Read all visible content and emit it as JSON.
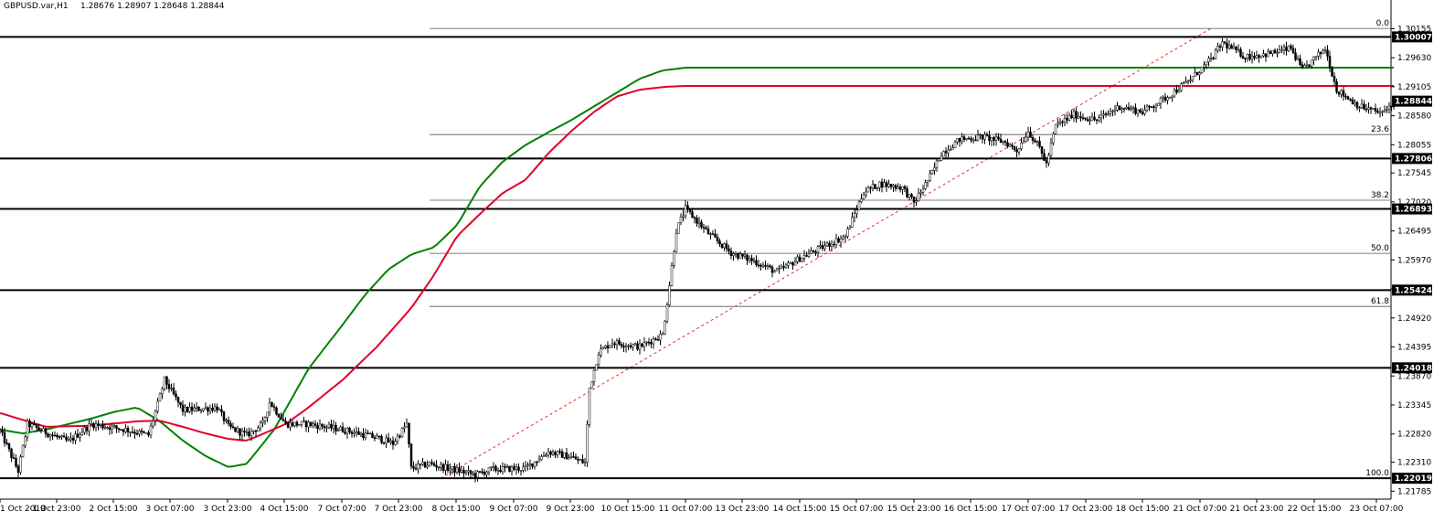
{
  "header": {
    "symbol_tf": "GBPUSD.var,H1",
    "ohlc": "1.28676 1.28907 1.28648 1.28844"
  },
  "chart_data": {
    "type": "candlestick",
    "symbol": "GBPUSD.var",
    "timeframe": "H1",
    "ohlc": {
      "open": 1.28676,
      "high": 1.28907,
      "low": 1.28648,
      "close": 1.28844
    },
    "ylim": [
      1.2174,
      1.3041
    ],
    "y_ticks": [
      1.30155,
      1.2963,
      1.29105,
      1.2858,
      1.28055,
      1.27545,
      1.2702,
      1.26495,
      1.2597,
      1.25445,
      1.2492,
      1.24395,
      1.2387,
      1.23345,
      1.2282,
      1.2231,
      1.21785
    ],
    "x_ticks": [
      "1 Oct 2019",
      "1 Oct 23:00",
      "2 Oct 15:00",
      "3 Oct 07:00",
      "3 Oct 23:00",
      "4 Oct 15:00",
      "7 Oct 07:00",
      "7 Oct 23:00",
      "8 Oct 15:00",
      "9 Oct 07:00",
      "9 Oct 23:00",
      "10 Oct 15:00",
      "11 Oct 07:00",
      "13 Oct 23:00",
      "14 Oct 15:00",
      "15 Oct 07:00",
      "15 Oct 23:00",
      "16 Oct 15:00",
      "17 Oct 07:00",
      "17 Oct 23:00",
      "18 Oct 15:00",
      "21 Oct 07:00",
      "21 Oct 23:00",
      "22 Oct 15:00",
      "23 Oct 07:00"
    ],
    "price_boxes": [
      "1.30007",
      "1.28844",
      "1.27806",
      "1.26893",
      "1.25424",
      "1.24018",
      "1.22019"
    ],
    "horizontal_levels": [
      1.30007,
      1.27806,
      1.26893,
      1.25424,
      1.24018,
      1.22019
    ],
    "current_price": 1.28844,
    "fibonacci": {
      "high": 1.3016,
      "low": 1.22019,
      "levels": [
        {
          "label": "0.0",
          "value": 1.3016
        },
        {
          "label": "23.6",
          "value": 1.28239
        },
        {
          "label": "38.2",
          "value": 1.27051
        },
        {
          "label": "50.0",
          "value": 1.2609
        },
        {
          "label": "61.8",
          "value": 1.25129
        },
        {
          "label": "100.0",
          "value": 1.22019
        }
      ]
    },
    "series": [
      {
        "color": "#008000",
        "anchors": [
          [
            0,
            1.229
          ],
          [
            10,
            1.2283
          ],
          [
            20,
            1.229
          ],
          [
            30,
            1.23
          ],
          [
            40,
            1.231
          ],
          [
            50,
            1.2322
          ],
          [
            60,
            1.233
          ],
          [
            70,
            1.2305
          ],
          [
            80,
            1.227
          ],
          [
            90,
            1.2242
          ],
          [
            100,
            1.2222
          ],
          [
            108,
            1.2228
          ],
          [
            120,
            1.229
          ],
          [
            135,
            1.24
          ],
          [
            150,
            1.248
          ],
          [
            160,
            1.2535
          ],
          [
            170,
            1.258
          ],
          [
            180,
            1.2607
          ],
          [
            190,
            1.262
          ],
          [
            200,
            1.266
          ],
          [
            210,
            1.273
          ],
          [
            220,
            1.2775
          ],
          [
            230,
            1.2805
          ],
          [
            240,
            1.2828
          ],
          [
            250,
            1.285
          ],
          [
            260,
            1.2875
          ],
          [
            270,
            1.29
          ],
          [
            280,
            1.2925
          ],
          [
            290,
            1.294
          ],
          [
            300,
            1.2945
          ]
        ]
      },
      {
        "color": "#e0002a",
        "anchors": [
          [
            0,
            1.232
          ],
          [
            20,
            1.2295
          ],
          [
            40,
            1.2297
          ],
          [
            60,
            1.2305
          ],
          [
            70,
            1.2306
          ],
          [
            80,
            1.2295
          ],
          [
            90,
            1.2283
          ],
          [
            100,
            1.2273
          ],
          [
            108,
            1.227
          ],
          [
            115,
            1.2282
          ],
          [
            125,
            1.23
          ],
          [
            135,
            1.233
          ],
          [
            150,
            1.238
          ],
          [
            165,
            1.244
          ],
          [
            180,
            1.251
          ],
          [
            190,
            1.257
          ],
          [
            200,
            1.264
          ],
          [
            210,
            1.268
          ],
          [
            220,
            1.2718
          ],
          [
            230,
            1.2742
          ],
          [
            240,
            1.279
          ],
          [
            250,
            1.283
          ],
          [
            260,
            1.2865
          ],
          [
            270,
            1.2893
          ],
          [
            280,
            1.2905
          ],
          [
            290,
            1.291
          ],
          [
            300,
            1.2912
          ]
        ]
      }
    ],
    "candle_waypoints": [
      [
        0,
        1.2288
      ],
      [
        8,
        1.2215
      ],
      [
        12,
        1.23
      ],
      [
        20,
        1.2285
      ],
      [
        30,
        1.2268
      ],
      [
        40,
        1.23
      ],
      [
        55,
        1.229
      ],
      [
        65,
        1.228
      ],
      [
        70,
        1.235
      ],
      [
        72,
        1.238
      ],
      [
        80,
        1.2325
      ],
      [
        95,
        1.233
      ],
      [
        100,
        1.2295
      ],
      [
        108,
        1.228
      ],
      [
        115,
        1.23
      ],
      [
        118,
        1.234
      ],
      [
        125,
        1.23
      ],
      [
        135,
        1.23
      ],
      [
        150,
        1.229
      ],
      [
        165,
        1.2275
      ],
      [
        172,
        1.2265
      ],
      [
        178,
        1.23
      ],
      [
        180,
        1.222
      ],
      [
        188,
        1.2228
      ],
      [
        198,
        1.2218
      ],
      [
        208,
        1.2208
      ],
      [
        215,
        1.2218
      ],
      [
        230,
        1.222
      ],
      [
        240,
        1.225
      ],
      [
        250,
        1.224
      ],
      [
        256,
        1.223
      ],
      [
        258,
        1.2365
      ],
      [
        262,
        1.243
      ],
      [
        268,
        1.2448
      ],
      [
        280,
        1.244
      ],
      [
        290,
        1.2462
      ],
      [
        292,
        1.252
      ],
      [
        296,
        1.265
      ],
      [
        300,
        1.269
      ],
      [
        310,
        1.2645
      ],
      [
        320,
        1.261
      ],
      [
        330,
        1.2595
      ],
      [
        340,
        1.2575
      ],
      [
        350,
        1.26
      ],
      [
        360,
        1.262
      ],
      [
        370,
        1.264
      ],
      [
        378,
        1.272
      ],
      [
        385,
        1.2735
      ],
      [
        395,
        1.2728
      ],
      [
        400,
        1.27
      ],
      [
        408,
        1.2755
      ],
      [
        412,
        1.279
      ],
      [
        420,
        1.2815
      ],
      [
        430,
        1.282
      ],
      [
        440,
        1.281
      ],
      [
        445,
        1.2795
      ],
      [
        450,
        1.283
      ],
      [
        455,
        1.28
      ],
      [
        458,
        1.277
      ],
      [
        462,
        1.284
      ],
      [
        470,
        1.286
      ],
      [
        480,
        1.285
      ],
      [
        490,
        1.2875
      ],
      [
        500,
        1.2865
      ],
      [
        510,
        1.289
      ],
      [
        520,
        1.292
      ],
      [
        530,
        1.296
      ],
      [
        535,
        1.299
      ],
      [
        545,
        1.2965
      ],
      [
        555,
        1.297
      ],
      [
        565,
        1.298
      ],
      [
        570,
        1.294
      ],
      [
        575,
        1.296
      ],
      [
        580,
        1.298
      ],
      [
        585,
        1.2905
      ],
      [
        595,
        1.2875
      ],
      [
        605,
        1.2862
      ],
      [
        610,
        1.2884
      ]
    ]
  }
}
